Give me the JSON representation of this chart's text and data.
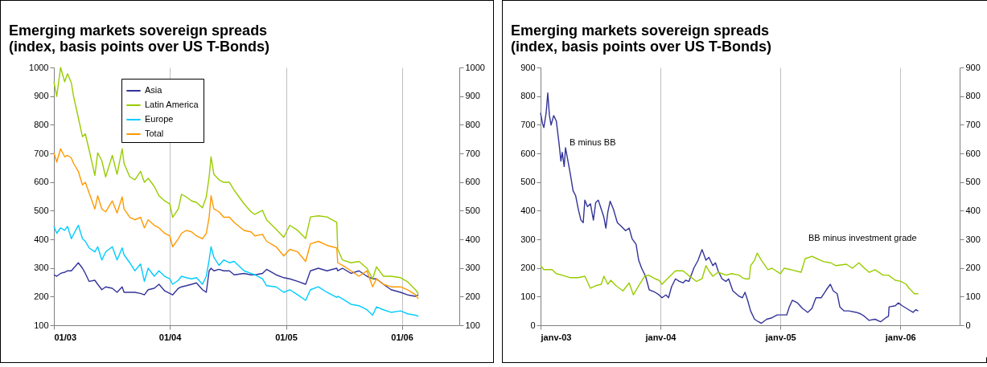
{
  "chart_data": [
    {
      "type": "line",
      "title": "Emerging markets sovereign spreads",
      "subtitle": "(index, basis points over US T-Bonds)",
      "x": [
        "2003-01-01",
        "2003-01-10",
        "2003-01-22",
        "2003-02-04",
        "2003-02-13",
        "2003-02-25",
        "2003-03-04",
        "2003-03-19",
        "2003-04-01",
        "2003-04-10",
        "2003-04-22",
        "2003-05-10",
        "2003-05-19",
        "2003-06-01",
        "2003-06-13",
        "2003-07-04",
        "2003-07-19",
        "2003-08-04",
        "2003-08-10",
        "2003-08-28",
        "2003-09-13",
        "2003-10-01",
        "2003-10-13",
        "2003-10-25",
        "2003-11-13",
        "2003-11-28",
        "2003-12-16",
        "2004-01-01",
        "2004-01-10",
        "2004-01-28",
        "2004-02-07",
        "2004-02-22",
        "2004-03-10",
        "2004-03-25",
        "2004-04-13",
        "2004-04-25",
        "2004-05-04",
        "2004-05-10",
        "2004-05-19",
        "2004-06-04",
        "2004-06-19",
        "2004-07-07",
        "2004-07-22",
        "2004-08-22",
        "2004-09-13",
        "2004-09-25",
        "2004-10-19",
        "2004-11-01",
        "2004-12-01",
        "2004-12-25",
        "2005-01-13",
        "2005-02-07",
        "2005-03-04",
        "2005-03-19",
        "2005-04-13",
        "2005-05-10",
        "2005-06-10",
        "2005-06-13",
        "2005-06-28",
        "2005-07-25",
        "2005-08-19",
        "2005-09-13",
        "2005-10-01",
        "2005-10-13",
        "2005-11-04",
        "2005-11-28",
        "2005-12-28",
        "2006-01-19",
        "2006-02-13",
        "2006-02-22"
      ],
      "series": [
        {
          "name": "Asia",
          "color": "#333399",
          "values": [
            276,
            271,
            281,
            285,
            290,
            290,
            299,
            318,
            299,
            281,
            253,
            257,
            243,
            224,
            234,
            229,
            215,
            234,
            215,
            215,
            215,
            211,
            206,
            224,
            229,
            243,
            220,
            211,
            206,
            229,
            234,
            238,
            243,
            248,
            224,
            215,
            290,
            299,
            290,
            295,
            290,
            290,
            276,
            281,
            276,
            276,
            281,
            295,
            276,
            266,
            262,
            253,
            243,
            290,
            299,
            290,
            299,
            290,
            299,
            281,
            290,
            271,
            262,
            262,
            243,
            224,
            215,
            206,
            201,
            206
          ]
        },
        {
          "name": "Latin America",
          "color": "#99cc00",
          "values": [
            950,
            899,
            1000,
            950,
            978,
            946,
            899,
            824,
            758,
            768,
            712,
            623,
            702,
            674,
            618,
            693,
            627,
            716,
            665,
            618,
            608,
            637,
            599,
            613,
            585,
            552,
            534,
            524,
            477,
            506,
            557,
            548,
            534,
            529,
            510,
            548,
            618,
            688,
            627,
            608,
            599,
            599,
            571,
            524,
            496,
            487,
            501,
            468,
            435,
            407,
            449,
            431,
            403,
            478,
            482,
            478,
            459,
            365,
            328,
            318,
            323,
            299,
            262,
            304,
            271,
            271,
            266,
            252,
            224,
            210
          ]
        },
        {
          "name": "Europe",
          "color": "#00ccff",
          "values": [
            445,
            421,
            440,
            431,
            445,
            402,
            417,
            449,
            402,
            393,
            370,
            356,
            374,
            328,
            356,
            374,
            328,
            370,
            346,
            318,
            290,
            314,
            253,
            299,
            271,
            290,
            271,
            262,
            243,
            257,
            271,
            266,
            262,
            266,
            243,
            271,
            328,
            374,
            337,
            309,
            328,
            318,
            323,
            290,
            281,
            276,
            262,
            238,
            234,
            215,
            224,
            206,
            187,
            224,
            234,
            215,
            197,
            201,
            192,
            173,
            168,
            154,
            135,
            164,
            154,
            145,
            150,
            140,
            135,
            131
          ]
        },
        {
          "name": "Total",
          "color": "#ff9900",
          "values": [
            702,
            670,
            716,
            688,
            693,
            684,
            665,
            637,
            590,
            599,
            562,
            506,
            552,
            506,
            496,
            534,
            492,
            548,
            506,
            477,
            468,
            477,
            440,
            468,
            449,
            440,
            421,
            412,
            374,
            402,
            421,
            431,
            426,
            412,
            402,
            421,
            477,
            552,
            506,
            496,
            477,
            477,
            459,
            431,
            426,
            412,
            417,
            393,
            374,
            342,
            365,
            356,
            323,
            384,
            393,
            379,
            370,
            318,
            309,
            290,
            271,
            290,
            234,
            262,
            243,
            234,
            234,
            224,
            206,
            192
          ]
        }
      ],
      "xlim": [
        "2003-01-01",
        "2006-07-01"
      ],
      "xticks": [
        {
          "value": "2003-01-01",
          "label": "01/03"
        },
        {
          "value": "2004-01-01",
          "label": "01/04"
        },
        {
          "value": "2005-01-01",
          "label": "01/05"
        },
        {
          "value": "2006-01-01",
          "label": "01/06"
        }
      ],
      "ylim": [
        100,
        1000
      ],
      "yticks": [
        100,
        200,
        300,
        400,
        500,
        600,
        700,
        800,
        900,
        1000
      ],
      "y2lim": [
        100,
        1000
      ],
      "y2ticks": [
        100,
        200,
        300,
        400,
        500,
        600,
        700,
        800,
        900,
        1000
      ],
      "grid": "x",
      "legend": "top left"
    },
    {
      "type": "line",
      "title": "Emerging markets sovereign spreads",
      "subtitle": "(index, basis points over US T-Bonds)",
      "series": [
        {
          "name": "B minus BB",
          "color": "#333399",
          "x": [
            "2003-01-01",
            "2003-01-07",
            "2003-01-11",
            "2003-01-18",
            "2003-01-23",
            "2003-01-28",
            "2003-02-02",
            "2003-02-10",
            "2003-02-18",
            "2003-02-26",
            "2003-03-04",
            "2003-03-08",
            "2003-03-14",
            "2003-03-18",
            "2003-03-24",
            "2003-04-02",
            "2003-04-10",
            "2003-04-18",
            "2003-04-26",
            "2003-05-04",
            "2003-05-11",
            "2003-05-16",
            "2003-05-24",
            "2003-06-02",
            "2003-06-11",
            "2003-06-18",
            "2003-06-26",
            "2003-07-05",
            "2003-07-13",
            "2003-07-19",
            "2003-07-25",
            "2003-08-01",
            "2003-08-11",
            "2003-08-23",
            "2003-09-05",
            "2003-09-17",
            "2003-09-28",
            "2003-10-07",
            "2003-10-19",
            "2003-10-27",
            "2003-11-05",
            "2003-11-17",
            "2003-11-28",
            "2003-12-16",
            "2003-12-28",
            "2004-01-06",
            "2004-01-18",
            "2004-01-26",
            "2004-02-04",
            "2004-02-16",
            "2004-02-28",
            "2004-03-10",
            "2004-03-18",
            "2004-03-28",
            "2004-04-12",
            "2004-04-25",
            "2004-05-07",
            "2004-05-19",
            "2004-05-28",
            "2004-06-09",
            "2004-06-17",
            "2004-06-25",
            "2004-07-07",
            "2004-07-19",
            "2004-07-27",
            "2004-08-09",
            "2004-08-28",
            "2004-09-07",
            "2004-09-15",
            "2004-09-23",
            "2004-10-02",
            "2004-10-14",
            "2004-10-26",
            "2004-11-04",
            "2004-11-20",
            "2004-12-06",
            "2004-12-22",
            "2005-01-04",
            "2005-01-20",
            "2005-01-28",
            "2005-02-06",
            "2005-02-22",
            "2005-03-09",
            "2005-03-25",
            "2005-04-07",
            "2005-04-19",
            "2005-05-05",
            "2005-05-21",
            "2005-06-02",
            "2005-06-11",
            "2005-06-23",
            "2005-07-01",
            "2005-07-14",
            "2005-07-28",
            "2005-08-20",
            "2005-09-02",
            "2005-09-14",
            "2005-09-28",
            "2005-10-16",
            "2005-11-02",
            "2005-11-18",
            "2005-11-26",
            "2005-11-28",
            "2005-12-17",
            "2005-12-26",
            "2006-01-07",
            "2006-01-27",
            "2006-02-09",
            "2006-02-17",
            "2006-02-25"
          ],
          "values": [
            741,
            704,
            690,
            741,
            811,
            732,
            699,
            732,
            713,
            638,
            573,
            604,
            554,
            620,
            583,
            526,
            470,
            452,
            405,
            367,
            358,
            437,
            414,
            424,
            367,
            428,
            437,
            405,
            377,
            339,
            395,
            433,
            405,
            358,
            344,
            330,
            339,
            302,
            283,
            227,
            199,
            171,
            124,
            115,
            106,
            96,
            106,
            96,
            134,
            162,
            153,
            148,
            157,
            153,
            199,
            227,
            264,
            227,
            237,
            208,
            218,
            190,
            162,
            153,
            162,
            120,
            101,
            96,
            115,
            87,
            50,
            21,
            12,
            7,
            21,
            26,
            36,
            36,
            36,
            64,
            87,
            78,
            59,
            45,
            59,
            96,
            96,
            124,
            143,
            120,
            110,
            64,
            50,
            50,
            45,
            40,
            31,
            17,
            21,
            12,
            26,
            31,
            64,
            68,
            78,
            68,
            54,
            45,
            54,
            50
          ]
        },
        {
          "name": "BB minus investment grade",
          "color": "#99cc00",
          "x": [
            "2003-01-01",
            "2003-01-11",
            "2003-02-05",
            "2003-02-18",
            "2003-03-08",
            "2003-04-02",
            "2003-04-26",
            "2003-05-16",
            "2003-06-02",
            "2003-06-18",
            "2003-07-05",
            "2003-07-13",
            "2003-07-25",
            "2003-08-03",
            "2003-08-19",
            "2003-09-09",
            "2003-09-28",
            "2003-10-11",
            "2003-10-27",
            "2003-11-14",
            "2003-11-26",
            "2003-12-16",
            "2003-12-28",
            "2004-01-06",
            "2004-01-22",
            "2004-02-16",
            "2004-03-10",
            "2004-03-26",
            "2004-04-20",
            "2004-05-07",
            "2004-05-19",
            "2004-05-28",
            "2004-06-09",
            "2004-06-25",
            "2004-07-19",
            "2004-08-05",
            "2004-08-28",
            "2004-09-07",
            "2004-09-15",
            "2004-09-28",
            "2004-10-02",
            "2004-10-14",
            "2004-10-22",
            "2004-11-04",
            "2004-11-24",
            "2004-12-06",
            "2005-01-01",
            "2005-01-12",
            "2005-02-02",
            "2005-03-05",
            "2005-03-17",
            "2005-04-07",
            "2005-04-23",
            "2005-05-13",
            "2005-06-03",
            "2005-06-19",
            "2005-07-21",
            "2005-08-08",
            "2005-08-28",
            "2005-09-14",
            "2005-09-28",
            "2005-10-16",
            "2005-11-10",
            "2005-11-26",
            "2005-12-17",
            "2006-01-03",
            "2006-01-19",
            "2006-01-28",
            "2006-02-13",
            "2006-02-25"
          ],
          "values": [
            208,
            194,
            194,
            180,
            175,
            166,
            166,
            171,
            129,
            138,
            143,
            171,
            143,
            157,
            138,
            120,
            148,
            106,
            138,
            171,
            175,
            162,
            157,
            143,
            162,
            190,
            190,
            175,
            153,
            162,
            208,
            190,
            171,
            185,
            175,
            180,
            175,
            166,
            162,
            162,
            208,
            227,
            252,
            227,
            194,
            199,
            180,
            199,
            194,
            185,
            232,
            241,
            232,
            222,
            218,
            208,
            213,
            199,
            218,
            199,
            185,
            194,
            175,
            175,
            157,
            153,
            143,
            129,
            110,
            110
          ]
        }
      ],
      "xlim": [
        "2003-01-01",
        "2006-07-01"
      ],
      "xticks": [
        {
          "value": "2003-01-01",
          "label": "janv-03"
        },
        {
          "value": "2004-01-01",
          "label": "janv-04"
        },
        {
          "value": "2005-01-01",
          "label": "janv-05"
        },
        {
          "value": "2006-01-01",
          "label": "janv-06"
        }
      ],
      "ylim": [
        0,
        900
      ],
      "yticks": [
        0,
        100,
        200,
        300,
        400,
        500,
        600,
        700,
        800,
        900
      ],
      "y2lim": [
        0,
        900
      ],
      "y2ticks": [
        0,
        100,
        200,
        300,
        400,
        500,
        600,
        700,
        800,
        900
      ],
      "grid": "x",
      "legend": false
    }
  ]
}
